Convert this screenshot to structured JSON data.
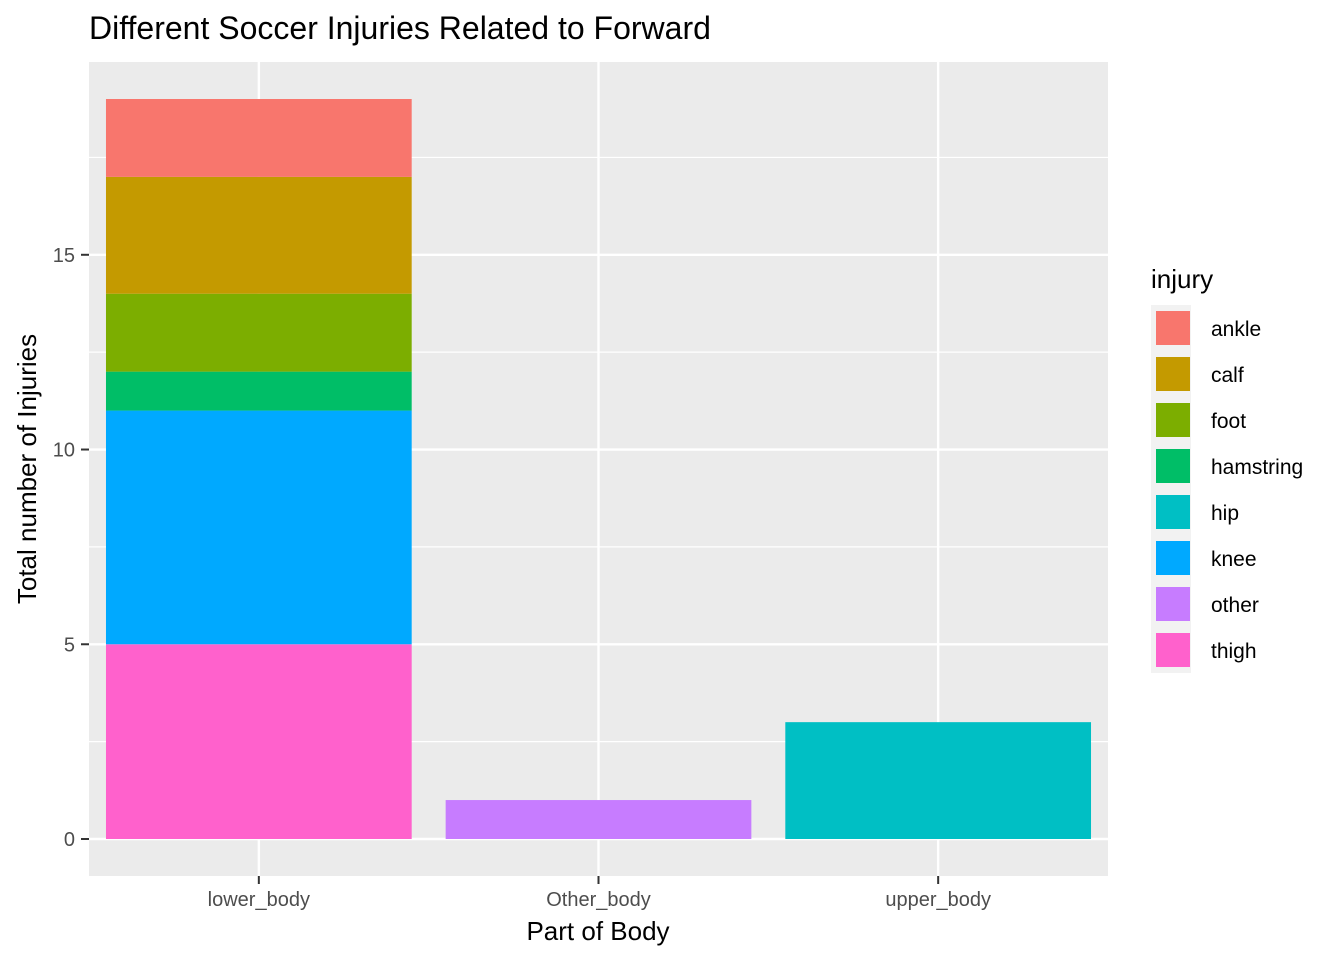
{
  "chart_data": {
    "type": "bar",
    "stacked": true,
    "title": "Different Soccer Injuries Related to Forward",
    "xlabel": "Part of Body",
    "ylabel": "Total number of Injuries",
    "categories": [
      "lower_body",
      "Other_body",
      "upper_body"
    ],
    "yticks": [
      0,
      5,
      10,
      15
    ],
    "ylim": [
      -0.95,
      19.95
    ],
    "grid": true,
    "legend": {
      "title": "injury",
      "position": "right"
    },
    "series": [
      {
        "name": "ankle",
        "color": "#F8766D",
        "values": [
          2,
          0,
          0
        ]
      },
      {
        "name": "calf",
        "color": "#C49A00",
        "values": [
          3,
          0,
          0
        ]
      },
      {
        "name": "foot",
        "color": "#7CAE00",
        "values": [
          2,
          0,
          0
        ]
      },
      {
        "name": "hamstring",
        "color": "#00BE67",
        "values": [
          1,
          0,
          0
        ]
      },
      {
        "name": "hip",
        "color": "#00BFC4",
        "values": [
          0,
          0,
          3
        ]
      },
      {
        "name": "knee",
        "color": "#00A9FF",
        "values": [
          6,
          0,
          0
        ]
      },
      {
        "name": "other",
        "color": "#C77CFF",
        "values": [
          0,
          1,
          0
        ]
      },
      {
        "name": "thigh",
        "color": "#FF61CC",
        "values": [
          5,
          0,
          0
        ]
      }
    ]
  }
}
